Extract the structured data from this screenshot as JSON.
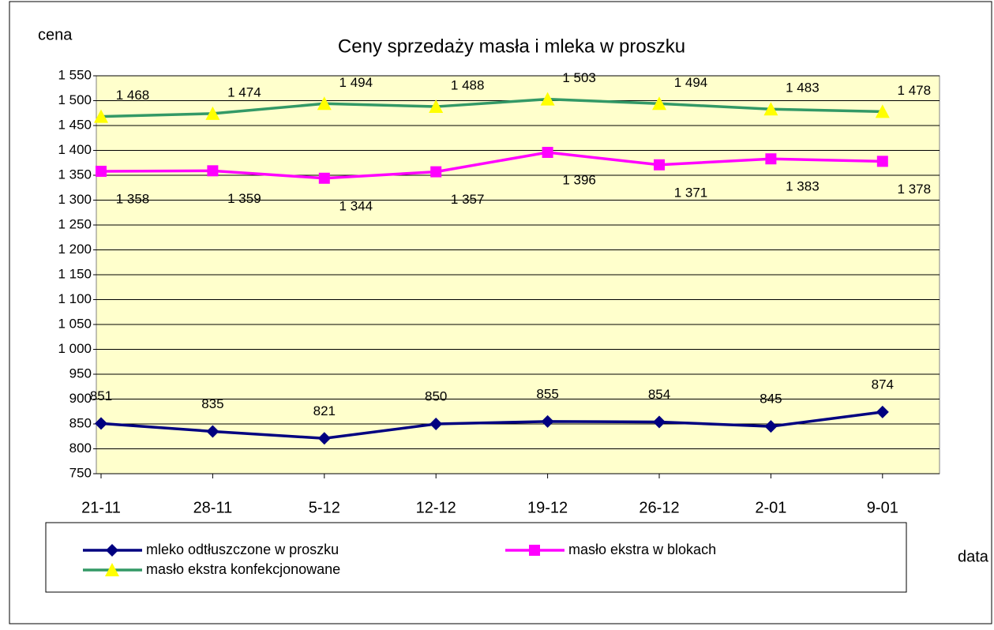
{
  "chart_data": {
    "type": "line",
    "title": "Ceny sprzedaży masła i mleka w proszku",
    "y_label": "cena",
    "x_label": "data",
    "categories": [
      "21-11",
      "28-11",
      "5-12",
      "12-12",
      "19-12",
      "26-12",
      "2-01",
      "9-01"
    ],
    "ylim": [
      750,
      1550
    ],
    "yticks": [
      750,
      800,
      850,
      900,
      950,
      {
        "value": 1000,
        "label": "1 000"
      },
      {
        "value": 1050,
        "label": "1 050"
      },
      {
        "value": 1100,
        "label": "1 100"
      },
      {
        "value": 1150,
        "label": "1 150"
      },
      {
        "value": 1200,
        "label": "1 200"
      },
      {
        "value": 1250,
        "label": "1 250"
      },
      {
        "value": 1300,
        "label": "1 300"
      },
      {
        "value": 1350,
        "label": "1 350"
      },
      {
        "value": 1400,
        "label": "1 400"
      },
      {
        "value": 1450,
        "label": "1 450"
      },
      {
        "value": 1500,
        "label": "1 500"
      },
      {
        "value": 1550,
        "label": "1 550"
      }
    ],
    "grid": true,
    "series": [
      {
        "name": "mleko odtłuszczone w proszku",
        "color": "#000080",
        "marker": "diamond",
        "values": [
          851,
          835,
          821,
          850,
          855,
          854,
          845,
          874
        ]
      },
      {
        "name": "masło ekstra w blokach",
        "color": "#ff00ff",
        "marker": "square",
        "values": [
          1358,
          1359,
          1344,
          1357,
          1396,
          1371,
          1383,
          1378
        ],
        "value_labels": [
          "1 358",
          "1 359",
          "1 344",
          "1 357",
          "1 396",
          "1 371",
          "1 383",
          "1 378"
        ]
      },
      {
        "name": "masło ekstra konfekcjonowane",
        "color": "#339966",
        "marker_color": "#ffff00",
        "marker": "triangle",
        "values": [
          1468,
          1474,
          1494,
          1488,
          1503,
          1494,
          1483,
          1478
        ],
        "value_labels": [
          "1 468",
          "1 474",
          "1 494",
          "1 488",
          "1 503",
          "1 494",
          "1 483",
          "1 478"
        ]
      }
    ]
  }
}
